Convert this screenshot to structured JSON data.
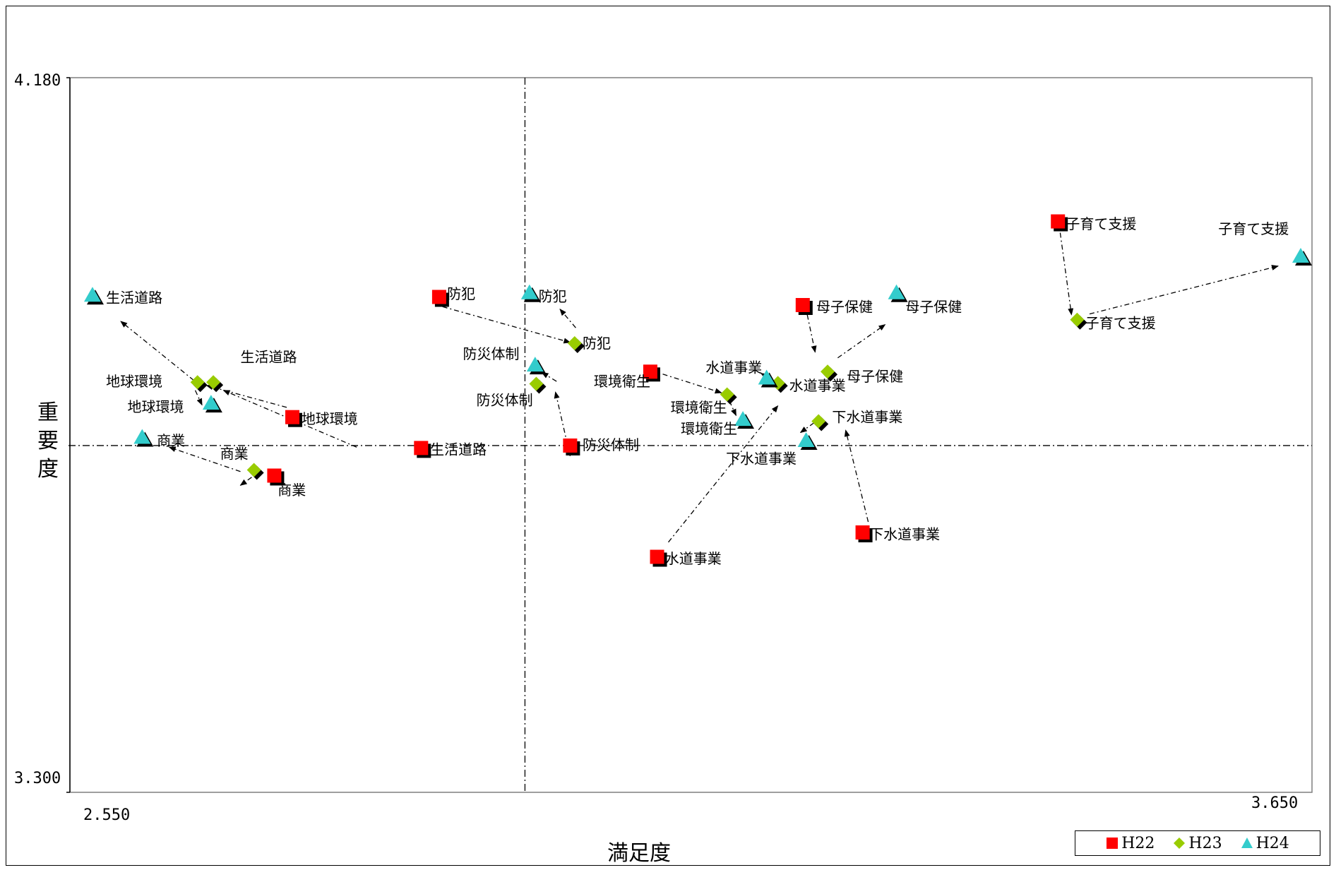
{
  "chart_data": {
    "type": "scatter",
    "xlabel": "満足度",
    "ylabel": "重要度",
    "xlim": [
      2.55,
      3.65
    ],
    "ylim": [
      3.3,
      4.18
    ],
    "x_tick_labels": {
      "min": "2.550",
      "max": "3.650"
    },
    "y_tick_labels": {
      "min": "3.300",
      "max": "4.180"
    },
    "reference_lines": {
      "x": 2.953,
      "y": 3.727
    },
    "grid": false,
    "legend_position": "bottom-right",
    "series": [
      {
        "name": "H22",
        "marker": "square",
        "color": "#ff0000",
        "points": [
          {
            "label": "防犯",
            "x": 2.877,
            "y": 3.91
          },
          {
            "label": "環境衛生",
            "x": 3.064,
            "y": 3.818
          },
          {
            "label": "母子保健",
            "x": 3.199,
            "y": 3.9
          },
          {
            "label": "子育て支援",
            "x": 3.425,
            "y": 4.003
          },
          {
            "label": "地球環境",
            "x": 2.747,
            "y": 3.762
          },
          {
            "label": "生活道路",
            "x": 2.861,
            "y": 3.724
          },
          {
            "label": "防災体制",
            "x": 2.993,
            "y": 3.727
          },
          {
            "label": "商業",
            "x": 2.731,
            "y": 3.69
          },
          {
            "label": "水道事業",
            "x": 3.07,
            "y": 3.59
          },
          {
            "label": "下水道事業",
            "x": 3.252,
            "y": 3.62
          }
        ]
      },
      {
        "name": "H23",
        "marker": "diamond",
        "color": "#99cc00",
        "points": [
          {
            "label": "防犯",
            "x": 2.997,
            "y": 3.853
          },
          {
            "label": "環境衛生",
            "x": 3.132,
            "y": 3.79
          },
          {
            "label": "母子保健",
            "x": 3.221,
            "y": 3.818
          },
          {
            "label": "子育て支援",
            "x": 3.442,
            "y": 3.882
          },
          {
            "label": "生活道路",
            "x": 2.677,
            "y": 3.805
          },
          {
            "label": "地球環境",
            "x": 2.663,
            "y": 3.805
          },
          {
            "label": "防災体制",
            "x": 2.963,
            "y": 3.803
          },
          {
            "label": "商業",
            "x": 2.713,
            "y": 3.697
          },
          {
            "label": "水道事業",
            "x": 3.177,
            "y": 3.804
          },
          {
            "label": "下水道事業",
            "x": 3.213,
            "y": 3.757
          }
        ]
      },
      {
        "name": "H24",
        "marker": "triangle",
        "color": "#33cccc",
        "points": [
          {
            "label": "生活道路",
            "x": 2.57,
            "y": 3.912
          },
          {
            "label": "防犯",
            "x": 2.957,
            "y": 3.915
          },
          {
            "label": "防災体制",
            "x": 2.962,
            "y": 3.826
          },
          {
            "label": "母子保健",
            "x": 3.282,
            "y": 3.915
          },
          {
            "label": "子育て支援",
            "x": 3.64,
            "y": 3.96
          },
          {
            "label": "地球環境",
            "x": 2.675,
            "y": 3.779
          },
          {
            "label": "商業",
            "x": 2.614,
            "y": 3.737
          },
          {
            "label": "環境衛生",
            "x": 3.146,
            "y": 3.759
          },
          {
            "label": "水道事業",
            "x": 3.167,
            "y": 3.81
          },
          {
            "label": "下水道事業",
            "x": 3.202,
            "y": 3.733
          }
        ]
      }
    ],
    "annotations": [
      {
        "text": "防犯",
        "x": 2.884,
        "y": 3.914
      },
      {
        "text": "防犯",
        "x": 2.965,
        "y": 3.911
      },
      {
        "text": "防犯",
        "x": 3.004,
        "y": 3.853
      },
      {
        "text": "防災体制",
        "x": 2.898,
        "y": 3.84
      },
      {
        "text": "防災体制",
        "x": 2.91,
        "y": 3.783
      },
      {
        "text": "防災体制",
        "x": 3.004,
        "y": 3.728
      },
      {
        "text": "環境衛生",
        "x": 3.014,
        "y": 3.806
      },
      {
        "text": "環境衛生",
        "x": 3.082,
        "y": 3.774
      },
      {
        "text": "環境衛生",
        "x": 3.091,
        "y": 3.748
      },
      {
        "text": "水道事業",
        "x": 3.113,
        "y": 3.823
      },
      {
        "text": "水道事業",
        "x": 3.187,
        "y": 3.801
      },
      {
        "text": "水道事業",
        "x": 3.077,
        "y": 3.588
      },
      {
        "text": "下水道事業",
        "x": 3.225,
        "y": 3.762
      },
      {
        "text": "下水道事業",
        "x": 3.131,
        "y": 3.711
      },
      {
        "text": "下水道事業",
        "x": 3.258,
        "y": 3.618
      },
      {
        "text": "母子保健",
        "x": 3.211,
        "y": 3.898
      },
      {
        "text": "母子保健",
        "x": 3.29,
        "y": 3.898
      },
      {
        "text": "母子保健",
        "x": 3.238,
        "y": 3.812
      },
      {
        "text": "子育て支援",
        "x": 3.432,
        "y": 4.0
      },
      {
        "text": "子育て支援",
        "x": 3.567,
        "y": 3.994
      },
      {
        "text": "子育て支援",
        "x": 3.449,
        "y": 3.878
      },
      {
        "text": "生活道路",
        "x": 2.582,
        "y": 3.909
      },
      {
        "text": "生活道路",
        "x": 2.701,
        "y": 3.836
      },
      {
        "text": "生活道路",
        "x": 2.869,
        "y": 3.722
      },
      {
        "text": "地球環境",
        "x": 2.582,
        "y": 3.806
      },
      {
        "text": "地球環境",
        "x": 2.601,
        "y": 3.775
      },
      {
        "text": "地球環境",
        "x": 2.755,
        "y": 3.76
      },
      {
        "text": "商業",
        "x": 2.627,
        "y": 3.733
      },
      {
        "text": "商業",
        "x": 2.683,
        "y": 3.717
      },
      {
        "text": "商業",
        "x": 2.734,
        "y": 3.672
      }
    ],
    "arrows": [
      {
        "from": [
          2.88,
          3.898
        ],
        "to": [
          2.993,
          3.854
        ]
      },
      {
        "from": [
          2.998,
          3.872
        ],
        "to": [
          2.984,
          3.895
        ]
      },
      {
        "from": [
          2.993,
          3.714
        ],
        "to": [
          2.98,
          3.793
        ]
      },
      {
        "from": [
          2.981,
          3.806
        ],
        "to": [
          2.968,
          3.817
        ]
      },
      {
        "from": [
          3.075,
          3.815
        ],
        "to": [
          3.127,
          3.792
        ]
      },
      {
        "from": [
          3.134,
          3.782
        ],
        "to": [
          3.14,
          3.764
        ]
      },
      {
        "from": [
          3.203,
          3.888
        ],
        "to": [
          3.21,
          3.842
        ]
      },
      {
        "from": [
          3.23,
          3.835
        ],
        "to": [
          3.272,
          3.876
        ]
      },
      {
        "from": [
          3.427,
          3.989
        ],
        "to": [
          3.437,
          3.888
        ]
      },
      {
        "from": [
          3.453,
          3.889
        ],
        "to": [
          3.62,
          3.948
        ]
      },
      {
        "from": [
          2.804,
          3.725
        ],
        "to": [
          2.686,
          3.795
        ]
      },
      {
        "from": [
          2.668,
          3.798
        ],
        "to": [
          2.595,
          3.88
        ]
      },
      {
        "from": [
          2.742,
          3.774
        ],
        "to": [
          2.671,
          3.801
        ]
      },
      {
        "from": [
          2.661,
          3.795
        ],
        "to": [
          2.667,
          3.777
        ]
      },
      {
        "from": [
          2.711,
          3.688
        ],
        "to": [
          2.701,
          3.678
        ]
      },
      {
        "from": [
          2.701,
          3.695
        ],
        "to": [
          2.638,
          3.725
        ]
      },
      {
        "from": [
          3.08,
          3.608
        ],
        "to": [
          3.177,
          3.776
        ]
      },
      {
        "from": [
          3.172,
          3.808
        ],
        "to": [
          3.162,
          3.816
        ]
      },
      {
        "from": [
          3.257,
          3.633
        ],
        "to": [
          3.237,
          3.746
        ]
      },
      {
        "from": [
          3.209,
          3.755
        ],
        "to": [
          3.197,
          3.743
        ]
      }
    ]
  }
}
